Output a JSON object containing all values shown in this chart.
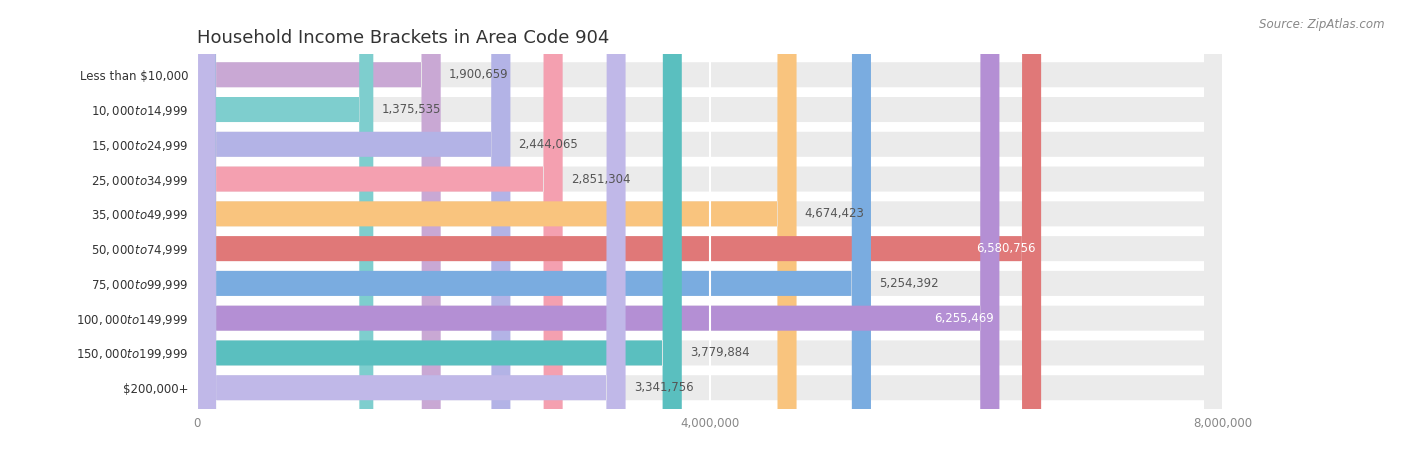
{
  "title": "Household Income Brackets in Area Code 904",
  "source": "Source: ZipAtlas.com",
  "categories": [
    "Less than $10,000",
    "$10,000 to $14,999",
    "$15,000 to $24,999",
    "$25,000 to $34,999",
    "$35,000 to $49,999",
    "$50,000 to $74,999",
    "$75,000 to $99,999",
    "$100,000 to $149,999",
    "$150,000 to $199,999",
    "$200,000+"
  ],
  "values": [
    1900659,
    1375535,
    2444065,
    2851304,
    4674423,
    6580756,
    5254392,
    6255469,
    3779884,
    3341756
  ],
  "bar_colors": [
    "#c9a8d4",
    "#7ecece",
    "#b3b3e6",
    "#f4a0b0",
    "#f9c47e",
    "#e07878",
    "#7aace0",
    "#b48fd4",
    "#5abfbf",
    "#c0b8e8"
  ],
  "label_values": [
    "1,900,659",
    "1,375,535",
    "2,444,065",
    "2,851,304",
    "4,674,423",
    "6,580,756",
    "5,254,392",
    "6,255,469",
    "3,779,884",
    "3,341,756"
  ],
  "xlim": [
    0,
    8000000
  ],
  "xticks": [
    0,
    4000000,
    8000000
  ],
  "xtick_labels": [
    "0",
    "4,000,000",
    "8,000,000"
  ],
  "background_color": "#ffffff",
  "bar_bg_color": "#ebebeb",
  "title_fontsize": 13,
  "label_fontsize": 8.5,
  "tick_fontsize": 8.5,
  "source_fontsize": 8.5,
  "bar_height": 0.72
}
